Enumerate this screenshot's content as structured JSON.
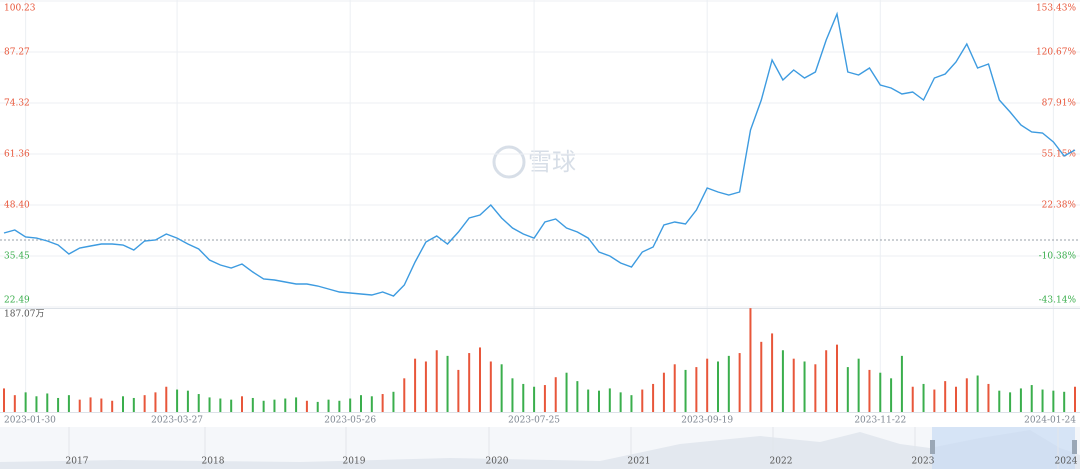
{
  "chart_data": {
    "type": "line",
    "watermark": "雪球",
    "color": "#3d9be0",
    "up_color": "#e8563a",
    "down_color": "#3aae4c",
    "ylim": [
      22.49,
      100.23
    ],
    "yticks": [
      100.23,
      87.27,
      74.32,
      61.36,
      {
        "value": 48.4,
        "label": "48.40"
      },
      35.45,
      22.49
    ],
    "y2lim": [
      -43.14,
      153.43
    ],
    "y2ticks": [
      {
        "value": 153.43,
        "label": "153.43%"
      },
      {
        "value": 120.67,
        "label": "120.67%"
      },
      {
        "value": 87.91,
        "label": "87.91%"
      },
      {
        "value": 55.15,
        "label": "55.15%"
      },
      {
        "value": 22.38,
        "label": "22.38%"
      },
      {
        "value": -10.38,
        "label": "-10.38%"
      },
      {
        "value": -43.14,
        "label": "-43.14%"
      }
    ],
    "reference_line": 39.51,
    "categories": [
      null,
      null,
      "2023-01-30",
      null,
      null,
      null,
      null,
      null,
      null,
      null,
      null,
      null,
      null,
      null,
      null,
      null,
      "2023-03-27",
      null,
      null,
      null,
      null,
      null,
      null,
      null,
      null,
      null,
      null,
      null,
      null,
      null,
      null,
      null,
      "2023-05-26",
      null,
      null,
      null,
      null,
      null,
      null,
      null,
      null,
      null,
      null,
      null,
      null,
      null,
      null,
      null,
      null,
      "2023-07-25",
      null,
      null,
      null,
      null,
      null,
      null,
      null,
      null,
      null,
      null,
      null,
      null,
      null,
      null,
      null,
      "2023-09-19",
      null,
      null,
      null,
      null,
      null,
      null,
      null,
      null,
      null,
      null,
      null,
      null,
      null,
      null,
      null,
      "2023-11-22",
      null,
      null,
      null,
      null,
      null,
      null,
      null,
      null,
      null,
      null,
      null,
      null,
      null,
      null,
      null,
      "2024-01-24",
      null,
      null
    ],
    "values": [
      41.3,
      42.05,
      40.27,
      40.0,
      39.26,
      38.24,
      35.96,
      37.48,
      37.99,
      38.5,
      38.5,
      38.24,
      36.97,
      39.26,
      39.51,
      41.04,
      40.0,
      38.5,
      37.22,
      34.43,
      33.16,
      32.4,
      33.41,
      31.38,
      29.6,
      29.35,
      28.84,
      28.33,
      28.33,
      27.83,
      27.06,
      26.3,
      26.05,
      25.79,
      25.54,
      26.3,
      25.28,
      28.08,
      33.92,
      39.0,
      40.53,
      38.5,
      41.54,
      45.1,
      45.86,
      48.4,
      45.1,
      42.56,
      41.04,
      40.0,
      44.08,
      44.85,
      42.56,
      41.54,
      40.0,
      36.46,
      35.45,
      33.67,
      32.65,
      36.46,
      37.73,
      43.32,
      44.08,
      43.58,
      47.13,
      52.72,
      51.71,
      50.94,
      51.71,
      67.46,
      75.08,
      85.24,
      80.16,
      82.7,
      80.67,
      82.2,
      90.32,
      96.93,
      82.2,
      81.43,
      83.21,
      78.89,
      78.13,
      76.6,
      77.11,
      75.08,
      80.67,
      81.68,
      84.73,
      89.31,
      83.21,
      84.22,
      75.08,
      72.03,
      68.73,
      66.95,
      66.7,
      64.41,
      60.85,
      62.38
    ],
    "volume": {
      "ylim": [
        0,
        187.07
      ],
      "yticks": [
        {
          "value": 187.07,
          "label": "187.07万"
        }
      ],
      "values": [
        42,
        30,
        35,
        28,
        33,
        25,
        30,
        22,
        26,
        24,
        20,
        28,
        25,
        30,
        35,
        45,
        40,
        38,
        32,
        26,
        24,
        22,
        28,
        25,
        20,
        22,
        24,
        26,
        20,
        18,
        22,
        20,
        24,
        30,
        28,
        32,
        36,
        60,
        95,
        90,
        110,
        100,
        75,
        105,
        115,
        90,
        85,
        60,
        50,
        45,
        48,
        62,
        70,
        55,
        40,
        38,
        42,
        35,
        30,
        40,
        50,
        70,
        85,
        75,
        80,
        95,
        90,
        100,
        105,
        185,
        125,
        140,
        110,
        95,
        90,
        85,
        110,
        120,
        80,
        95,
        75,
        70,
        60,
        100,
        45,
        50,
        40,
        55,
        45,
        60,
        65,
        50,
        38,
        35,
        42,
        48,
        40,
        38,
        36,
        45
      ]
    },
    "navigator_years": [
      "2017",
      "2018",
      "2019",
      "2020",
      "2021",
      "2022",
      "2023",
      "2024"
    ]
  }
}
